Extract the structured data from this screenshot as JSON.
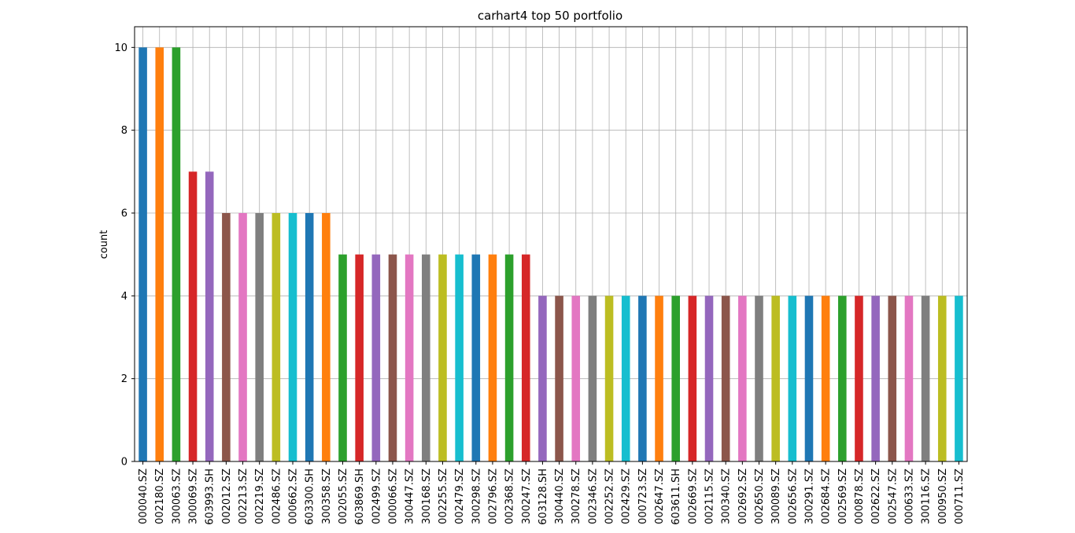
{
  "chart_data": {
    "type": "bar",
    "title": "carhart4 top 50 portfolio",
    "xlabel": "",
    "ylabel": "count",
    "ylim": [
      0,
      10.5
    ],
    "yticks": [
      0,
      2,
      4,
      6,
      8,
      10
    ],
    "grid": true,
    "legend": "none",
    "categories": [
      "000040.SZ",
      "002180.SZ",
      "300063.SZ",
      "300069.SZ",
      "603993.SH",
      "002012.SZ",
      "002213.SZ",
      "002219.SZ",
      "002486.SZ",
      "000662.SZ",
      "603300.SH",
      "300358.SZ",
      "002055.SZ",
      "603869.SH",
      "002499.SZ",
      "000066.SZ",
      "300447.SZ",
      "300168.SZ",
      "002255.SZ",
      "002479.SZ",
      "300298.SZ",
      "002796.SZ",
      "002368.SZ",
      "300247.SZ",
      "603128.SH",
      "300440.SZ",
      "300278.SZ",
      "002346.SZ",
      "002252.SZ",
      "002429.SZ",
      "000723.SZ",
      "002647.SZ",
      "603611.SH",
      "002669.SZ",
      "002115.SZ",
      "300340.SZ",
      "002692.SZ",
      "002650.SZ",
      "300089.SZ",
      "002656.SZ",
      "300291.SZ",
      "002684.SZ",
      "002569.SZ",
      "000878.SZ",
      "002622.SZ",
      "002547.SZ",
      "000633.SZ",
      "300116.SZ",
      "000950.SZ",
      "000711.SZ"
    ],
    "values": [
      10,
      10,
      10,
      7,
      7,
      6,
      6,
      6,
      6,
      6,
      6,
      6,
      5,
      5,
      5,
      5,
      5,
      5,
      5,
      5,
      5,
      5,
      5,
      5,
      4,
      4,
      4,
      4,
      4,
      4,
      4,
      4,
      4,
      4,
      4,
      4,
      4,
      4,
      4,
      4,
      4,
      4,
      4,
      4,
      4,
      4,
      4,
      4,
      4,
      4
    ],
    "palette": [
      "#1f77b4",
      "#ff7f0e",
      "#2ca02c",
      "#d62728",
      "#9467bd",
      "#8c564b",
      "#e377c2",
      "#7f7f7f",
      "#bcbd22",
      "#17becf"
    ],
    "grid_color": "#b0b0b0"
  }
}
